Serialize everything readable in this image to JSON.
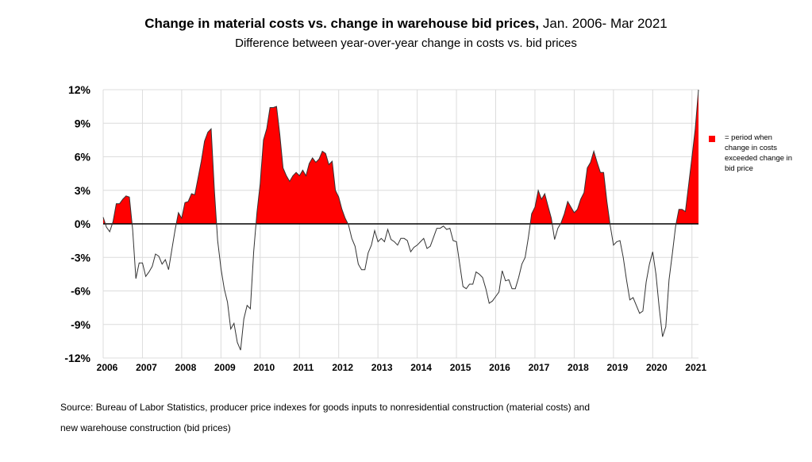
{
  "chart_data": {
    "type": "area",
    "title_bold": "Change in material costs vs. change in warehouse bid prices,",
    "title_rest": " Jan. 2006- Mar 2021",
    "subtitle": "Difference between year-over-year change in costs vs. bid prices",
    "ylabel": "",
    "xlabel": "",
    "ylim": [
      -12,
      12
    ],
    "y_ticks": [
      12,
      9,
      6,
      3,
      0,
      -3,
      -6,
      -9,
      -12
    ],
    "y_tick_labels": [
      "12%",
      "9%",
      "6%",
      "3%",
      "0%",
      "-3%",
      "-6%",
      "-9%",
      "-12%"
    ],
    "x_tick_labels": [
      "2006",
      "2007",
      "2008",
      "2009",
      "2010",
      "2011",
      "2012",
      "2013",
      "2014",
      "2015",
      "2016",
      "2017",
      "2018",
      "2019",
      "2020",
      "2021"
    ],
    "start": "Jan 2006",
    "frequency": "monthly",
    "grid": true,
    "legend": {
      "label": "= period when change in costs exceeded change in bid price",
      "placement": "right"
    },
    "positive_fill_color": "#ff0000",
    "line_color": "#333333",
    "values": [
      0.6,
      -0.3,
      -0.7,
      0.2,
      1.8,
      1.8,
      2.2,
      2.5,
      2.4,
      -0.5,
      -4.9,
      -3.5,
      -3.5,
      -4.7,
      -4.3,
      -3.8,
      -2.7,
      -2.9,
      -3.6,
      -3.2,
      -4.1,
      -2.3,
      -0.5,
      1.0,
      0.5,
      1.9,
      2.0,
      2.7,
      2.6,
      4.1,
      5.6,
      7.4,
      8.2,
      8.5,
      3.0,
      -1.5,
      -4.0,
      -5.8,
      -7.0,
      -9.4,
      -8.9,
      -10.6,
      -11.3,
      -8.5,
      -7.3,
      -7.6,
      -2.5,
      1.0,
      3.6,
      7.5,
      8.5,
      10.4,
      10.4,
      10.5,
      8.0,
      5.0,
      4.3,
      3.8,
      4.3,
      4.6,
      4.3,
      4.8,
      4.3,
      5.4,
      5.9,
      5.5,
      5.8,
      6.5,
      6.3,
      5.3,
      5.6,
      3.0,
      2.4,
      1.3,
      0.5,
      -0.1,
      -1.3,
      -2.0,
      -3.6,
      -4.1,
      -4.1,
      -2.6,
      -1.9,
      -0.6,
      -1.6,
      -1.3,
      -1.6,
      -0.5,
      -1.4,
      -1.6,
      -1.9,
      -1.3,
      -1.3,
      -1.5,
      -2.5,
      -2.1,
      -1.9,
      -1.6,
      -1.3,
      -2.2,
      -2.0,
      -1.2,
      -0.4,
      -0.4,
      -0.2,
      -0.5,
      -0.4,
      -1.5,
      -1.6,
      -3.6,
      -5.6,
      -5.8,
      -5.4,
      -5.4,
      -4.3,
      -4.5,
      -4.8,
      -5.8,
      -7.1,
      -6.9,
      -6.5,
      -6.1,
      -4.2,
      -5.1,
      -5.0,
      -5.8,
      -5.8,
      -4.8,
      -3.6,
      -3.0,
      -1.2,
      0.9,
      1.5,
      3.0,
      2.2,
      2.7,
      1.6,
      0.5,
      -1.4,
      -0.4,
      0.1,
      0.9,
      2.0,
      1.5,
      1.0,
      1.3,
      2.2,
      2.8,
      5.0,
      5.5,
      6.5,
      5.5,
      4.6,
      4.6,
      2.0,
      -0.1,
      -1.9,
      -1.6,
      -1.5,
      -3.0,
      -5.0,
      -6.8,
      -6.6,
      -7.3,
      -8.0,
      -7.8,
      -5.2,
      -3.6,
      -2.5,
      -4.5,
      -7.5,
      -10.1,
      -9.2,
      -5.0,
      -2.7,
      -0.2,
      1.3,
      1.3,
      1.1,
      3.5,
      6.0,
      8.5,
      12.0
    ]
  },
  "source_line1": "Source: Bureau of Labor Statistics, producer price indexes for goods inputs to nonresidential construction (material costs) and",
  "source_line2": "new warehouse construction (bid prices)"
}
